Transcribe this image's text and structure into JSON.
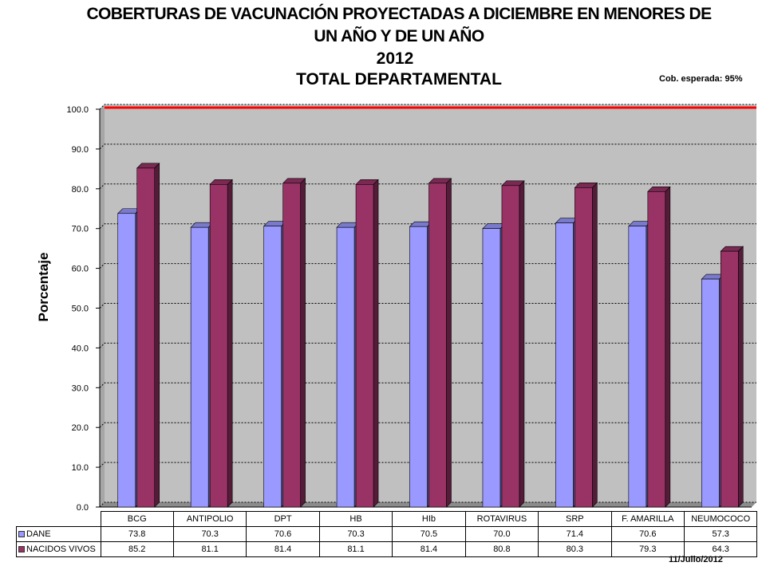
{
  "title": "COBERTURAS DE VACUNACIÓN PROYECTADAS A DICIEMBRE EN MENORES DE UN AÑO Y DE UN AÑO",
  "subtitle_year": "2012",
  "subtitle_scope": "TOTAL DEPARTAMENTAL",
  "expected_coverage_label": "Cob. esperada:  95%",
  "date_label": "11/Julio/2012",
  "colors": {
    "dane": "#9999ff",
    "nacidos_vivos": "#993366",
    "target_line": "#ff0000",
    "plot_background": "#c0c0c0"
  },
  "chart_data": {
    "type": "bar",
    "title": "COBERTURAS DE VACUNACIÓN PROYECTADAS A DICIEMBRE EN MENORES DE UN AÑO Y DE UN AÑO",
    "xlabel": "",
    "ylabel": "Porcentaje",
    "ylim": [
      0,
      100
    ],
    "yticks": [
      "0.0",
      "10.0",
      "20.0",
      "30.0",
      "40.0",
      "50.0",
      "60.0",
      "70.0",
      "80.0",
      "90.0",
      "100.0"
    ],
    "categories": [
      "BCG",
      "ANTIPOLIO",
      "DPT",
      "HB",
      "HIb",
      "ROTAVIRUS",
      "SRP",
      "F. AMARILLA",
      "NEUMOCOCO"
    ],
    "series": [
      {
        "name": "DANE",
        "values": [
          73.8,
          70.3,
          70.6,
          70.3,
          70.5,
          70.0,
          71.4,
          70.6,
          57.3
        ],
        "labels": [
          "73.8",
          "70.3",
          "70.6",
          "70.3",
          "70.5",
          "70.0",
          "71.4",
          "70.6",
          "57.3"
        ]
      },
      {
        "name": "NACIDOS VIVOS",
        "values": [
          85.2,
          81.1,
          81.4,
          81.1,
          81.4,
          80.8,
          80.3,
          79.3,
          64.3
        ],
        "labels": [
          "85.2",
          "81.1",
          "81.4",
          "81.1",
          "81.4",
          "80.8",
          "80.3",
          "79.3",
          "64.3"
        ]
      }
    ],
    "reference_line": 100,
    "grid": true,
    "legend": "data table"
  }
}
